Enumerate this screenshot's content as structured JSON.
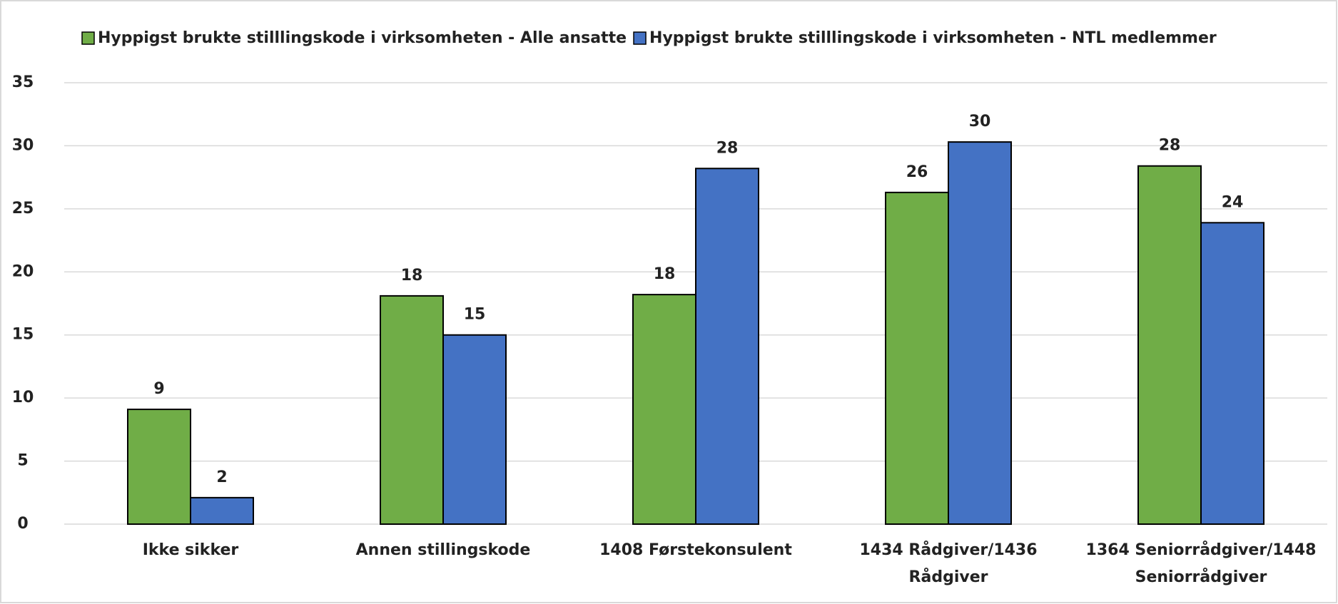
{
  "chart_data": {
    "type": "bar",
    "categories": [
      "Ikke sikker",
      "Annen stillingskode",
      "1408 Førstekonsulent",
      "1434 Rådgiver/1436 Rådgiver",
      "1364 Seniorrådgiver/1448 Seniorrådgiver"
    ],
    "series": [
      {
        "name": "Hyppigst brukte stilllingskode i virksomheten - Alle ansatte",
        "color": "#70ad47",
        "values": [
          9.1,
          18.1,
          18.2,
          26.3,
          28.4
        ],
        "value_labels": [
          "9",
          "18",
          "18",
          "26",
          "28"
        ]
      },
      {
        "name": "Hyppigst brukte stilllingskode i virksomheten - NTL medlemmer",
        "color": "#4472c4",
        "values": [
          2.1,
          15.0,
          28.2,
          30.3,
          23.9
        ],
        "value_labels": [
          "2",
          "15",
          "28",
          "30",
          "24"
        ]
      }
    ],
    "ylim": [
      0,
      35
    ],
    "yticks": [
      0,
      5,
      10,
      15,
      20,
      25,
      30,
      35
    ],
    "grid": true,
    "legend": "top"
  }
}
